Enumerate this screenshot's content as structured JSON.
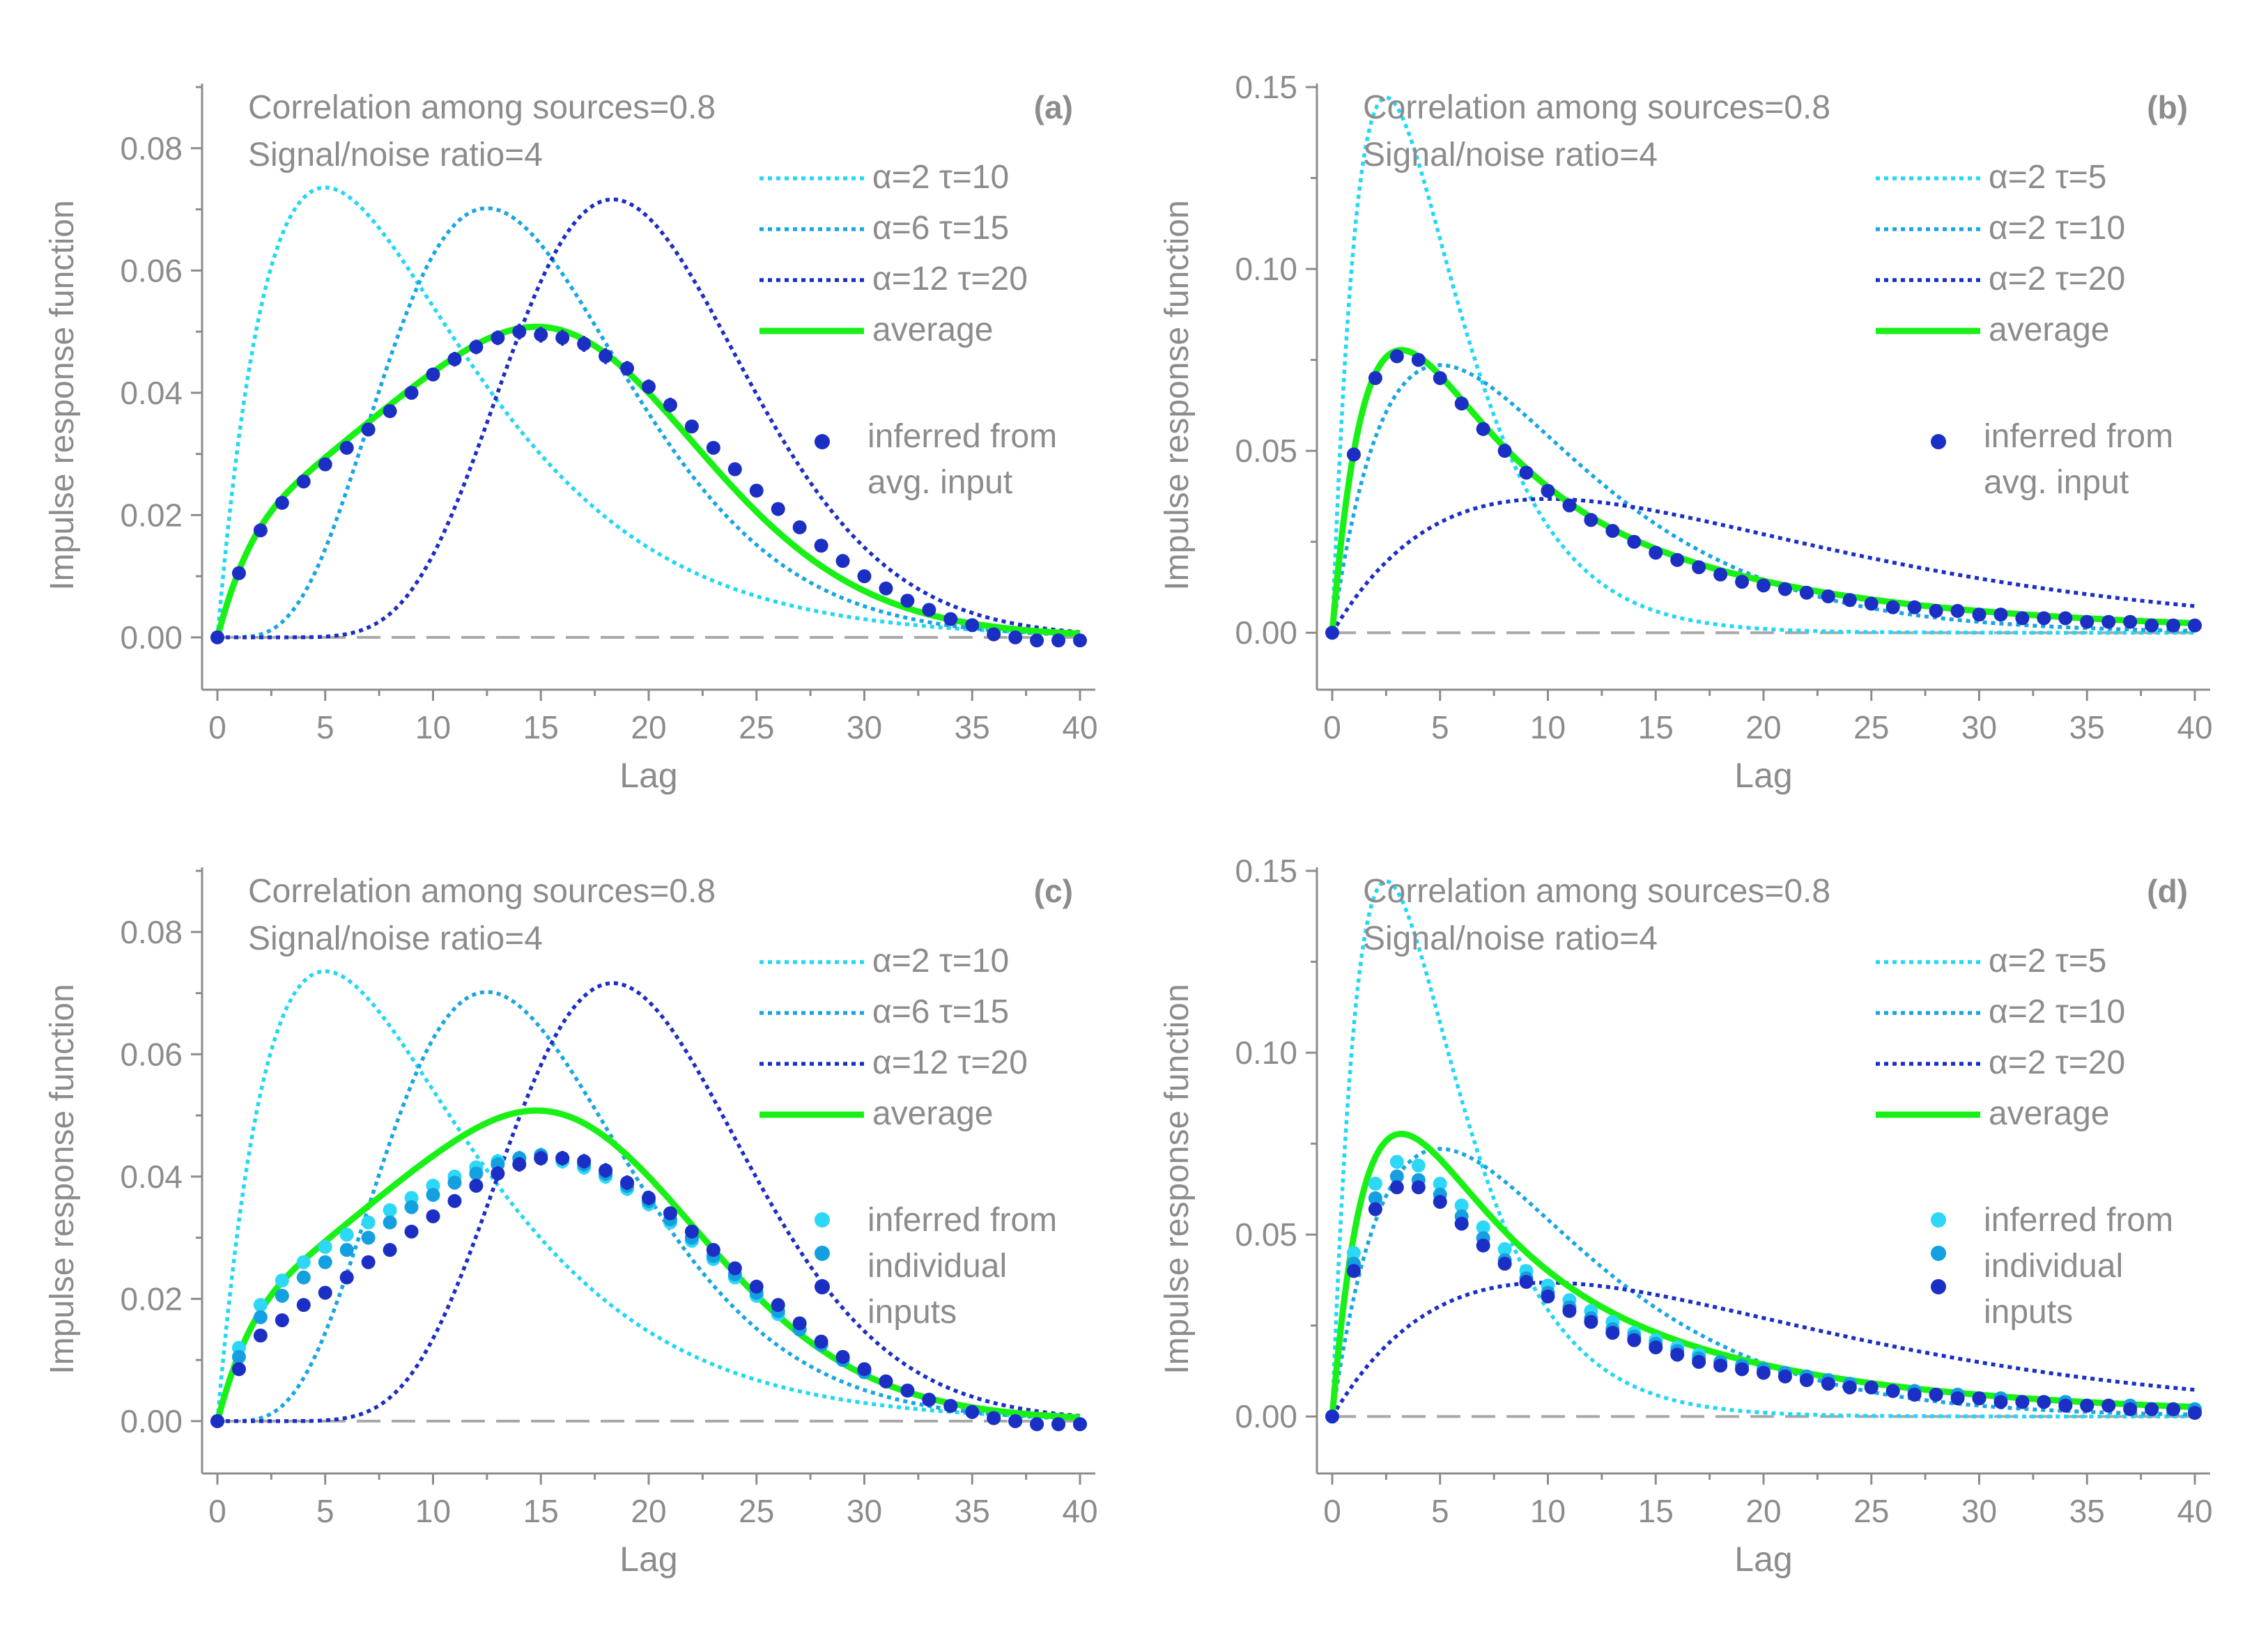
{
  "colors": {
    "axis": "#8c8c8c",
    "text": "#8c8c8c",
    "zero_line": "#a8a8a8",
    "series_light": "#22d8f4",
    "series_mid": "#1aa6e2",
    "series_dark": "#1c2fc4",
    "average": "#19f015",
    "points_light": "#2cd8f6",
    "points_mid": "#14a0e0",
    "points_dark": "#1c2fc4"
  },
  "chart_data": [
    {
      "type": "line",
      "panel_label": "(a)",
      "annotation_lines": [
        "Correlation among sources=0.8",
        "Signal/noise ratio=4"
      ],
      "xlabel": "Lag",
      "ylabel": "Impulse response function",
      "xlim": [
        0,
        40
      ],
      "ylim": [
        -0.004,
        0.09
      ],
      "xticks": [
        0,
        5,
        10,
        15,
        20,
        25,
        30,
        35,
        40
      ],
      "yticks": [
        0.0,
        0.02,
        0.04,
        0.06,
        0.08
      ],
      "ytick_labels": [
        "0.00",
        "0.02",
        "0.04",
        "0.06",
        "0.08"
      ],
      "zero_line": true,
      "series": [
        {
          "name": "α=2    τ=10",
          "style": "dotted",
          "color_key": "series_light",
          "gamma": {
            "shape": 2,
            "scale": 5
          }
        },
        {
          "name": "α=6    τ=15",
          "style": "dotted",
          "color_key": "series_mid",
          "gamma": {
            "shape": 6,
            "scale": 2.5
          }
        },
        {
          "name": "α=12  τ=20",
          "style": "dotted",
          "color_key": "series_dark",
          "gamma": {
            "shape": 12,
            "scale": 1.6667
          }
        },
        {
          "name": "average",
          "style": "solid",
          "color_key": "average",
          "average_of_previous": true
        }
      ],
      "points_legend": [
        "inferred from",
        "avg. input"
      ],
      "points": [
        {
          "color_key": "points_dark",
          "x_start": 0,
          "x_step": 1,
          "y": [
            0.0,
            0.0105,
            0.0175,
            0.022,
            0.0255,
            0.0283,
            0.031,
            0.034,
            0.037,
            0.04,
            0.043,
            0.0455,
            0.0475,
            0.049,
            0.05,
            0.0495,
            0.049,
            0.048,
            0.046,
            0.044,
            0.041,
            0.038,
            0.0345,
            0.031,
            0.0275,
            0.024,
            0.021,
            0.018,
            0.015,
            0.0125,
            0.01,
            0.008,
            0.006,
            0.0045,
            0.003,
            0.002,
            0.0005,
            0.0,
            -0.0005,
            -0.0005,
            -0.0005
          ],
          "err": [
            0.0,
            0.0008,
            0.0008,
            0.0008,
            0.0009,
            0.0009,
            0.0009,
            0.001,
            0.001,
            0.0011,
            0.0011,
            0.0012,
            0.0012,
            0.0012,
            0.0013,
            0.0013,
            0.0013,
            0.0013,
            0.0013,
            0.0012,
            0.0012,
            0.0012,
            0.0011,
            0.0011,
            0.0011,
            0.001,
            0.001,
            0.001,
            0.001,
            0.001,
            0.001,
            0.001,
            0.001,
            0.001,
            0.001,
            0.001,
            0.001,
            0.001,
            0.001,
            0.001,
            0.001
          ]
        }
      ]
    },
    {
      "type": "line",
      "panel_label": "(b)",
      "annotation_lines": [
        "Correlation among sources=0.8",
        "Signal/noise ratio=4"
      ],
      "xlabel": "Lag",
      "ylabel": "Impulse response function",
      "xlim": [
        0,
        40
      ],
      "ylim": [
        -0.008,
        0.15
      ],
      "xticks": [
        0,
        5,
        10,
        15,
        20,
        25,
        30,
        35,
        40
      ],
      "yticks": [
        0.0,
        0.05,
        0.1,
        0.15
      ],
      "ytick_labels": [
        "0.00",
        "0.05",
        "0.10",
        "0.15"
      ],
      "zero_line": true,
      "series": [
        {
          "name": "α=2    τ=5",
          "style": "dotted",
          "color_key": "series_light",
          "gamma": {
            "shape": 2,
            "scale": 2.5
          }
        },
        {
          "name": "α=2    τ=10",
          "style": "dotted",
          "color_key": "series_mid",
          "gamma": {
            "shape": 2,
            "scale": 5
          }
        },
        {
          "name": "α=2    τ=20",
          "style": "dotted",
          "color_key": "series_dark",
          "gamma": {
            "shape": 2,
            "scale": 10
          }
        },
        {
          "name": "average",
          "style": "solid",
          "color_key": "average",
          "average_of_previous": true
        }
      ],
      "points_legend": [
        "inferred from",
        "avg. input"
      ],
      "points": [
        {
          "color_key": "points_dark",
          "x_start": 0,
          "x_step": 1,
          "y": [
            0.0,
            0.049,
            0.07,
            0.076,
            0.075,
            0.07,
            0.063,
            0.056,
            0.05,
            0.044,
            0.039,
            0.035,
            0.031,
            0.028,
            0.025,
            0.022,
            0.02,
            0.018,
            0.016,
            0.014,
            0.013,
            0.012,
            0.011,
            0.01,
            0.009,
            0.008,
            0.007,
            0.007,
            0.006,
            0.006,
            0.005,
            0.005,
            0.004,
            0.004,
            0.004,
            0.003,
            0.003,
            0.003,
            0.002,
            0.002,
            0.002
          ],
          "err": []
        }
      ]
    },
    {
      "type": "line",
      "panel_label": "(c)",
      "annotation_lines": [
        "Correlation among sources=0.8",
        "Signal/noise ratio=4"
      ],
      "xlabel": "Lag",
      "ylabel": "Impulse response function",
      "xlim": [
        0,
        40
      ],
      "ylim": [
        -0.004,
        0.09
      ],
      "xticks": [
        0,
        5,
        10,
        15,
        20,
        25,
        30,
        35,
        40
      ],
      "yticks": [
        0.0,
        0.02,
        0.04,
        0.06,
        0.08
      ],
      "ytick_labels": [
        "0.00",
        "0.02",
        "0.04",
        "0.06",
        "0.08"
      ],
      "zero_line": true,
      "series": [
        {
          "name": "α=2    τ=10",
          "style": "dotted",
          "color_key": "series_light",
          "gamma": {
            "shape": 2,
            "scale": 5
          }
        },
        {
          "name": "α=6    τ=15",
          "style": "dotted",
          "color_key": "series_mid",
          "gamma": {
            "shape": 6,
            "scale": 2.5
          }
        },
        {
          "name": "α=12  τ=20",
          "style": "dotted",
          "color_key": "series_dark",
          "gamma": {
            "shape": 12,
            "scale": 1.6667
          }
        },
        {
          "name": "average",
          "style": "solid",
          "color_key": "average",
          "average_of_previous": true
        }
      ],
      "points_legend": [
        "inferred from",
        "individual",
        "inputs"
      ],
      "points": [
        {
          "color_key": "points_light",
          "x_start": 0,
          "x_step": 1,
          "y": [
            0.0,
            0.012,
            0.019,
            0.023,
            0.026,
            0.0285,
            0.0305,
            0.0325,
            0.0345,
            0.0365,
            0.0385,
            0.04,
            0.0415,
            0.0425,
            0.043,
            0.043,
            0.0425,
            0.0415,
            0.04,
            0.038,
            0.0355,
            0.0325,
            0.0295,
            0.0265,
            0.0235,
            0.0205,
            0.0175,
            0.015,
            0.0125,
            0.01,
            0.008,
            0.0065,
            0.005,
            0.0035,
            0.0025,
            0.0015,
            0.0005,
            0.0,
            -0.0005,
            -0.0005,
            -0.0005
          ],
          "err": [
            0.0,
            0.0008,
            0.0008,
            0.0008,
            0.0009,
            0.0009,
            0.0009,
            0.001,
            0.001,
            0.001,
            0.0011,
            0.0011,
            0.0011,
            0.0012,
            0.0012,
            0.0012,
            0.0012,
            0.0012,
            0.0012,
            0.0012,
            0.0012,
            0.0011,
            0.0011,
            0.0011,
            0.001,
            0.001,
            0.001,
            0.001,
            0.001,
            0.001,
            0.001,
            0.001,
            0.001,
            0.001,
            0.001,
            0.001,
            0.001,
            0.001,
            0.001,
            0.001,
            0.001
          ]
        },
        {
          "color_key": "points_mid",
          "x_start": 0,
          "x_step": 1,
          "y": [
            0.0,
            0.0105,
            0.017,
            0.0205,
            0.0235,
            0.026,
            0.028,
            0.03,
            0.0325,
            0.035,
            0.037,
            0.039,
            0.0405,
            0.042,
            0.043,
            0.0435,
            0.043,
            0.042,
            0.0405,
            0.0385,
            0.036,
            0.033,
            0.03,
            0.027,
            0.024,
            0.021,
            0.018,
            0.015,
            0.0125,
            0.01,
            0.008,
            0.0065,
            0.005,
            0.0035,
            0.0025,
            0.0015,
            0.0005,
            0.0,
            -0.0005,
            -0.0005,
            -0.0005
          ],
          "err": [
            0.0,
            0.0008,
            0.0008,
            0.0008,
            0.0009,
            0.0009,
            0.0009,
            0.001,
            0.001,
            0.001,
            0.0011,
            0.0011,
            0.0011,
            0.0012,
            0.0012,
            0.0012,
            0.0012,
            0.0012,
            0.0012,
            0.0012,
            0.0012,
            0.0011,
            0.0011,
            0.0011,
            0.001,
            0.001,
            0.001,
            0.001,
            0.001,
            0.001,
            0.001,
            0.001,
            0.001,
            0.001,
            0.001,
            0.001,
            0.001,
            0.001,
            0.001,
            0.001,
            0.001
          ]
        },
        {
          "color_key": "points_dark",
          "x_start": 0,
          "x_step": 1,
          "y": [
            0.0,
            0.0085,
            0.014,
            0.0165,
            0.019,
            0.021,
            0.0235,
            0.026,
            0.028,
            0.031,
            0.0335,
            0.036,
            0.0385,
            0.0405,
            0.042,
            0.043,
            0.043,
            0.0425,
            0.041,
            0.039,
            0.0365,
            0.034,
            0.031,
            0.028,
            0.025,
            0.022,
            0.019,
            0.016,
            0.013,
            0.0105,
            0.0085,
            0.0065,
            0.005,
            0.0035,
            0.0025,
            0.0015,
            0.0005,
            0.0,
            -0.0005,
            -0.0005,
            -0.0005
          ],
          "err": [
            0.0,
            0.0008,
            0.0008,
            0.0008,
            0.0009,
            0.0009,
            0.0009,
            0.001,
            0.001,
            0.001,
            0.0011,
            0.0011,
            0.0011,
            0.0012,
            0.0012,
            0.0012,
            0.0012,
            0.0012,
            0.0012,
            0.0012,
            0.0012,
            0.0011,
            0.0011,
            0.0011,
            0.001,
            0.001,
            0.001,
            0.001,
            0.001,
            0.001,
            0.001,
            0.001,
            0.001,
            0.001,
            0.001,
            0.001,
            0.001,
            0.001,
            0.001,
            0.001,
            0.001
          ]
        }
      ]
    },
    {
      "type": "line",
      "panel_label": "(d)",
      "annotation_lines": [
        "Correlation among sources=0.8",
        "Signal/noise ratio=4"
      ],
      "xlabel": "Lag",
      "ylabel": "Impulse response function",
      "xlim": [
        0,
        40
      ],
      "ylim": [
        -0.008,
        0.15
      ],
      "xticks": [
        0,
        5,
        10,
        15,
        20,
        25,
        30,
        35,
        40
      ],
      "yticks": [
        0.0,
        0.05,
        0.1,
        0.15
      ],
      "ytick_labels": [
        "0.00",
        "0.05",
        "0.10",
        "0.15"
      ],
      "zero_line": true,
      "series": [
        {
          "name": "α=2    τ=5",
          "style": "dotted",
          "color_key": "series_light",
          "gamma": {
            "shape": 2,
            "scale": 2.5
          }
        },
        {
          "name": "α=2    τ=10",
          "style": "dotted",
          "color_key": "series_mid",
          "gamma": {
            "shape": 2,
            "scale": 5
          }
        },
        {
          "name": "α=2    τ=20",
          "style": "dotted",
          "color_key": "series_dark",
          "gamma": {
            "shape": 2,
            "scale": 10
          }
        },
        {
          "name": "average",
          "style": "solid",
          "color_key": "average",
          "average_of_previous": true
        }
      ],
      "points_legend": [
        "inferred from",
        "individual",
        "inputs"
      ],
      "points": [
        {
          "color_key": "points_light",
          "x_start": 0,
          "x_step": 1,
          "y": [
            0.0,
            0.045,
            0.064,
            0.07,
            0.069,
            0.064,
            0.058,
            0.052,
            0.046,
            0.04,
            0.036,
            0.032,
            0.029,
            0.026,
            0.023,
            0.021,
            0.019,
            0.017,
            0.015,
            0.014,
            0.013,
            0.012,
            0.011,
            0.01,
            0.009,
            0.008,
            0.007,
            0.007,
            0.006,
            0.006,
            0.005,
            0.005,
            0.004,
            0.004,
            0.004,
            0.003,
            0.003,
            0.003,
            0.002,
            0.002,
            0.002
          ],
          "err": []
        },
        {
          "color_key": "points_mid",
          "x_start": 0,
          "x_step": 1,
          "y": [
            0.0,
            0.042,
            0.06,
            0.066,
            0.065,
            0.061,
            0.055,
            0.049,
            0.043,
            0.038,
            0.034,
            0.03,
            0.027,
            0.024,
            0.022,
            0.02,
            0.018,
            0.016,
            0.015,
            0.014,
            0.013,
            0.012,
            0.011,
            0.01,
            0.009,
            0.008,
            0.007,
            0.007,
            0.006,
            0.006,
            0.005,
            0.005,
            0.004,
            0.004,
            0.004,
            0.003,
            0.003,
            0.003,
            0.002,
            0.002,
            0.002
          ],
          "err": []
        },
        {
          "color_key": "points_dark",
          "x_start": 0,
          "x_step": 1,
          "y": [
            0.0,
            0.04,
            0.057,
            0.063,
            0.063,
            0.059,
            0.053,
            0.047,
            0.042,
            0.037,
            0.033,
            0.029,
            0.026,
            0.023,
            0.021,
            0.019,
            0.017,
            0.015,
            0.014,
            0.013,
            0.012,
            0.011,
            0.01,
            0.009,
            0.008,
            0.008,
            0.007,
            0.006,
            0.006,
            0.005,
            0.005,
            0.004,
            0.004,
            0.004,
            0.003,
            0.003,
            0.003,
            0.002,
            0.002,
            0.002,
            0.001
          ],
          "err": []
        }
      ]
    }
  ]
}
